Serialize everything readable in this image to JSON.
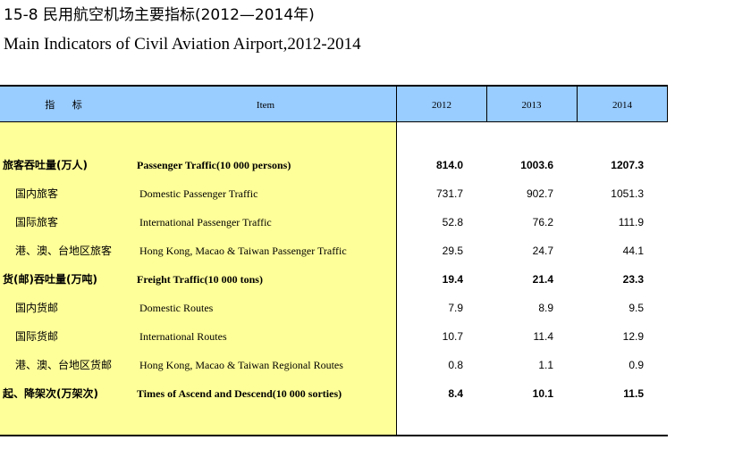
{
  "title": {
    "cn": "15-8   民用航空机场主要指标(2012—2014年)",
    "en": "Main Indicators of Civil Aviation Airport,2012-2014"
  },
  "table": {
    "headers": {
      "indicator_cn": "指 标",
      "item_en": "Item",
      "years": [
        "2012",
        "2013",
        "2014"
      ]
    },
    "rows": [
      {
        "cn": "旅客吞吐量(万人)",
        "en": "Passenger Traffic(10 000 persons)",
        "values": [
          "814.0",
          "1003.6",
          "1207.3"
        ]
      },
      {
        "cn": "国内旅客",
        "en": "Domestic Passenger Traffic",
        "values": [
          "731.7",
          "902.7",
          "1051.3"
        ]
      },
      {
        "cn": "国际旅客",
        "en": "International Passenger Traffic",
        "values": [
          "52.8",
          "76.2",
          "111.9"
        ]
      },
      {
        "cn": "港、澳、台地区旅客",
        "en": "Hong Kong, Macao & Taiwan Passenger Traffic",
        "values": [
          "29.5",
          "24.7",
          "44.1"
        ]
      },
      {
        "cn": "货(邮)吞吐量(万吨)",
        "en": "Freight Traffic(10 000 tons)",
        "values": [
          "19.4",
          "21.4",
          "23.3"
        ]
      },
      {
        "cn": "国内货邮",
        "en": "Domestic Routes",
        "values": [
          "7.9",
          "8.9",
          "9.5"
        ]
      },
      {
        "cn": "国际货邮",
        "en": "International Routes",
        "values": [
          "10.7",
          "11.4",
          "12.9"
        ]
      },
      {
        "cn": "港、澳、台地区货邮",
        "en": "Hong Kong, Macao & Taiwan Regional Routes",
        "values": [
          "0.8",
          "1.1",
          "0.9"
        ]
      },
      {
        "cn": "起、降架次(万架次)",
        "en": "Times of Ascend and Descend(10 000 sorties)",
        "values": [
          "8.4",
          "10.1",
          "11.5"
        ]
      }
    ]
  },
  "colors": {
    "header_bg": "#99ccff",
    "label_bg": "#ffff99"
  }
}
